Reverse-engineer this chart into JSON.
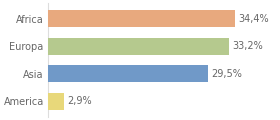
{
  "categories": [
    "Africa",
    "Europa",
    "Asia",
    "America"
  ],
  "values": [
    34.4,
    33.2,
    29.5,
    2.9
  ],
  "labels": [
    "34,4%",
    "33,2%",
    "29,5%",
    "2,9%"
  ],
  "bar_colors": [
    "#e8a97e",
    "#b5c98e",
    "#7099c8",
    "#e8d87a"
  ],
  "background_color": "#ffffff",
  "plot_bg_color": "#ffffff",
  "xlim": [
    0,
    42
  ],
  "bar_height": 0.62,
  "label_fontsize": 7.0,
  "tick_fontsize": 7.0,
  "label_color": "#666666",
  "tick_color": "#666666",
  "grid_color": "#dddddd"
}
